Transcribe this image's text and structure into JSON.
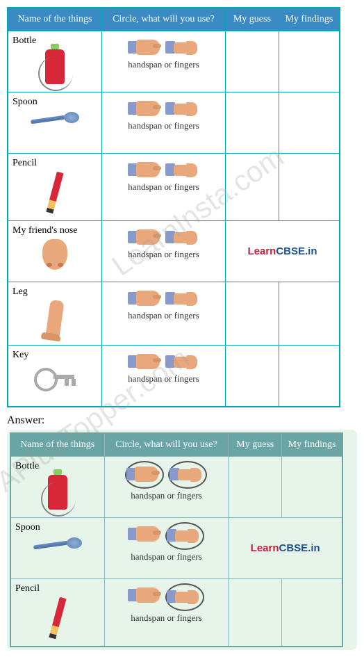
{
  "headers": {
    "name": "Name of the things",
    "circle": "Circle, what will you use?",
    "guess": "My guess",
    "findings": "My findings"
  },
  "caption": "handspan or fingers",
  "items": [
    {
      "label": "Bottle"
    },
    {
      "label": "Spoon"
    },
    {
      "label": "Pencil"
    },
    {
      "label": "My friend's nose"
    },
    {
      "label": "Leg"
    },
    {
      "label": "Key"
    }
  ],
  "answer_label": "Answer:",
  "answer_items": [
    {
      "label": "Bottle",
      "circled": "both"
    },
    {
      "label": "Spoon",
      "circled": "fingers"
    },
    {
      "label": "Pencil",
      "circled": "fingers"
    }
  ],
  "brand": {
    "part1": "Learn",
    "part2": "CBSE.in"
  },
  "watermarks": {
    "w1": "LearnInsta.com",
    "w2": "APlusTopper.com"
  }
}
